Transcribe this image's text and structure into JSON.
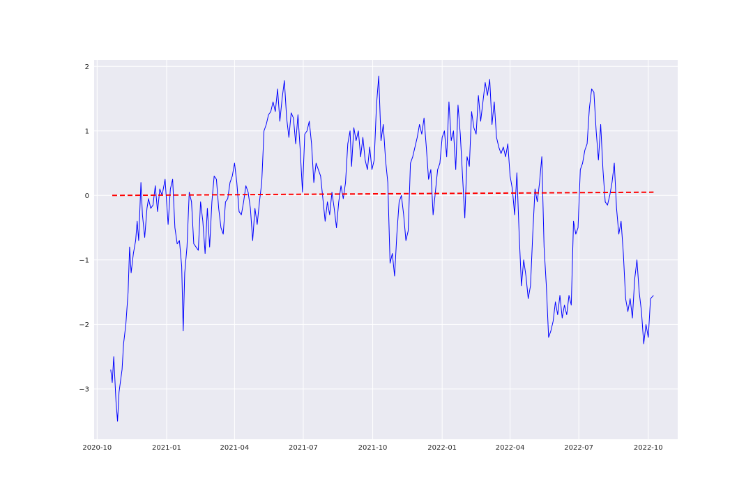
{
  "chart_data": {
    "type": "line",
    "title": "",
    "xlabel": "",
    "ylabel": "",
    "grid": true,
    "colors": {
      "background": "#eaeaf2",
      "grid": "#ffffff",
      "series": "#0000ff",
      "trend": "#ff0000",
      "text": "#262626"
    },
    "xlim": [
      "2020-09-27",
      "2022-11-09"
    ],
    "ylim": [
      -3.78,
      2.1
    ],
    "x_ticks": [
      {
        "date": "2020-10-01",
        "label": "2020-10"
      },
      {
        "date": "2021-01-01",
        "label": "2021-01"
      },
      {
        "date": "2021-04-01",
        "label": "2021-04"
      },
      {
        "date": "2021-07-01",
        "label": "2021-07"
      },
      {
        "date": "2021-10-01",
        "label": "2021-10"
      },
      {
        "date": "2022-01-01",
        "label": "2022-01"
      },
      {
        "date": "2022-04-01",
        "label": "2022-04"
      },
      {
        "date": "2022-07-01",
        "label": "2022-07"
      },
      {
        "date": "2022-10-01",
        "label": "2022-10"
      }
    ],
    "y_ticks": [
      {
        "value": -3,
        "label": "−3"
      },
      {
        "value": -2,
        "label": "−2"
      },
      {
        "value": -1,
        "label": "−1"
      },
      {
        "value": 0,
        "label": "0"
      },
      {
        "value": 1,
        "label": "1"
      },
      {
        "value": 2,
        "label": "2"
      }
    ],
    "series": [
      {
        "style": "solid",
        "points": [
          [
            "2020-10-19",
            -2.7
          ],
          [
            "2020-10-21",
            -2.9
          ],
          [
            "2020-10-23",
            -2.5
          ],
          [
            "2020-10-26",
            -3.2
          ],
          [
            "2020-10-28",
            -3.5
          ],
          [
            "2020-10-30",
            -3.05
          ],
          [
            "2020-11-03",
            -2.7
          ],
          [
            "2020-11-05",
            -2.3
          ],
          [
            "2020-11-08",
            -2.0
          ],
          [
            "2020-11-11",
            -1.5
          ],
          [
            "2020-11-13",
            -0.8
          ],
          [
            "2020-11-15",
            -1.2
          ],
          [
            "2020-11-18",
            -0.9
          ],
          [
            "2020-11-21",
            -0.7
          ],
          [
            "2020-11-23",
            -0.4
          ],
          [
            "2020-11-25",
            -0.7
          ],
          [
            "2020-11-28",
            0.2
          ],
          [
            "2020-11-30",
            -0.3
          ],
          [
            "2020-12-03",
            -0.65
          ],
          [
            "2020-12-06",
            -0.2
          ],
          [
            "2020-12-08",
            -0.05
          ],
          [
            "2020-12-11",
            -0.2
          ],
          [
            "2020-12-14",
            -0.15
          ],
          [
            "2020-12-17",
            0.15
          ],
          [
            "2020-12-20",
            -0.25
          ],
          [
            "2020-12-23",
            0.1
          ],
          [
            "2020-12-26",
            0.0
          ],
          [
            "2020-12-30",
            0.25
          ],
          [
            "2021-01-01",
            -0.1
          ],
          [
            "2021-01-03",
            -0.45
          ],
          [
            "2021-01-06",
            0.1
          ],
          [
            "2021-01-09",
            0.25
          ],
          [
            "2021-01-12",
            -0.5
          ],
          [
            "2021-01-15",
            -0.75
          ],
          [
            "2021-01-18",
            -0.7
          ],
          [
            "2021-01-21",
            -1.1
          ],
          [
            "2021-01-23",
            -2.1
          ],
          [
            "2021-01-25",
            -1.2
          ],
          [
            "2021-01-28",
            -0.8
          ],
          [
            "2021-01-31",
            0.05
          ],
          [
            "2021-02-03",
            -0.1
          ],
          [
            "2021-02-06",
            -0.75
          ],
          [
            "2021-02-09",
            -0.8
          ],
          [
            "2021-02-12",
            -0.85
          ],
          [
            "2021-02-15",
            -0.1
          ],
          [
            "2021-02-18",
            -0.4
          ],
          [
            "2021-02-21",
            -0.9
          ],
          [
            "2021-02-24",
            -0.2
          ],
          [
            "2021-02-27",
            -0.8
          ],
          [
            "2021-03-02",
            -0.1
          ],
          [
            "2021-03-05",
            0.3
          ],
          [
            "2021-03-08",
            0.25
          ],
          [
            "2021-03-11",
            -0.2
          ],
          [
            "2021-03-14",
            -0.5
          ],
          [
            "2021-03-17",
            -0.6
          ],
          [
            "2021-03-20",
            -0.1
          ],
          [
            "2021-03-23",
            -0.05
          ],
          [
            "2021-03-26",
            0.2
          ],
          [
            "2021-03-29",
            0.3
          ],
          [
            "2021-04-01",
            0.5
          ],
          [
            "2021-04-04",
            0.2
          ],
          [
            "2021-04-07",
            -0.25
          ],
          [
            "2021-04-10",
            -0.3
          ],
          [
            "2021-04-13",
            -0.1
          ],
          [
            "2021-04-16",
            0.15
          ],
          [
            "2021-04-19",
            0.05
          ],
          [
            "2021-04-22",
            -0.2
          ],
          [
            "2021-04-25",
            -0.7
          ],
          [
            "2021-04-28",
            -0.2
          ],
          [
            "2021-05-01",
            -0.45
          ],
          [
            "2021-05-04",
            -0.1
          ],
          [
            "2021-05-07",
            0.2
          ],
          [
            "2021-05-10",
            1.0
          ],
          [
            "2021-05-13",
            1.1
          ],
          [
            "2021-05-16",
            1.25
          ],
          [
            "2021-05-19",
            1.3
          ],
          [
            "2021-05-22",
            1.45
          ],
          [
            "2021-05-25",
            1.3
          ],
          [
            "2021-05-28",
            1.65
          ],
          [
            "2021-05-31",
            1.15
          ],
          [
            "2021-06-03",
            1.5
          ],
          [
            "2021-06-06",
            1.78
          ],
          [
            "2021-06-09",
            1.2
          ],
          [
            "2021-06-12",
            0.9
          ],
          [
            "2021-06-15",
            1.28
          ],
          [
            "2021-06-18",
            1.2
          ],
          [
            "2021-06-21",
            0.8
          ],
          [
            "2021-06-24",
            1.25
          ],
          [
            "2021-06-27",
            0.7
          ],
          [
            "2021-06-30",
            0.05
          ],
          [
            "2021-07-03",
            0.95
          ],
          [
            "2021-07-06",
            1.0
          ],
          [
            "2021-07-09",
            1.15
          ],
          [
            "2021-07-12",
            0.8
          ],
          [
            "2021-07-15",
            0.2
          ],
          [
            "2021-07-18",
            0.5
          ],
          [
            "2021-07-21",
            0.4
          ],
          [
            "2021-07-24",
            0.3
          ],
          [
            "2021-07-27",
            -0.05
          ],
          [
            "2021-07-30",
            -0.4
          ],
          [
            "2021-08-02",
            -0.1
          ],
          [
            "2021-08-05",
            -0.3
          ],
          [
            "2021-08-08",
            0.05
          ],
          [
            "2021-08-11",
            -0.2
          ],
          [
            "2021-08-14",
            -0.5
          ],
          [
            "2021-08-17",
            -0.1
          ],
          [
            "2021-08-20",
            0.15
          ],
          [
            "2021-08-23",
            -0.05
          ],
          [
            "2021-08-26",
            0.2
          ],
          [
            "2021-08-29",
            0.8
          ],
          [
            "2021-09-01",
            1.0
          ],
          [
            "2021-09-03",
            0.45
          ],
          [
            "2021-09-06",
            1.05
          ],
          [
            "2021-09-09",
            0.85
          ],
          [
            "2021-09-12",
            1.0
          ],
          [
            "2021-09-15",
            0.6
          ],
          [
            "2021-09-18",
            0.9
          ],
          [
            "2021-09-21",
            0.55
          ],
          [
            "2021-09-24",
            0.4
          ],
          [
            "2021-09-27",
            0.75
          ],
          [
            "2021-09-30",
            0.4
          ],
          [
            "2021-10-03",
            0.55
          ],
          [
            "2021-10-06",
            1.4
          ],
          [
            "2021-10-09",
            1.85
          ],
          [
            "2021-10-12",
            0.85
          ],
          [
            "2021-10-15",
            1.1
          ],
          [
            "2021-10-18",
            0.55
          ],
          [
            "2021-10-21",
            0.2
          ],
          [
            "2021-10-24",
            -1.05
          ],
          [
            "2021-10-27",
            -0.9
          ],
          [
            "2021-10-30",
            -1.25
          ],
          [
            "2021-11-02",
            -0.6
          ],
          [
            "2021-11-05",
            -0.1
          ],
          [
            "2021-11-08",
            0.0
          ],
          [
            "2021-11-11",
            -0.3
          ],
          [
            "2021-11-14",
            -0.7
          ],
          [
            "2021-11-17",
            -0.55
          ],
          [
            "2021-11-20",
            0.5
          ],
          [
            "2021-11-23",
            0.6
          ],
          [
            "2021-11-26",
            0.75
          ],
          [
            "2021-11-29",
            0.9
          ],
          [
            "2021-12-02",
            1.1
          ],
          [
            "2021-12-05",
            0.95
          ],
          [
            "2021-12-08",
            1.2
          ],
          [
            "2021-12-11",
            0.75
          ],
          [
            "2021-12-14",
            0.25
          ],
          [
            "2021-12-17",
            0.4
          ],
          [
            "2021-12-20",
            -0.3
          ],
          [
            "2021-12-23",
            0.05
          ],
          [
            "2021-12-26",
            0.4
          ],
          [
            "2021-12-29",
            0.5
          ],
          [
            "2022-01-01",
            0.9
          ],
          [
            "2022-01-04",
            1.0
          ],
          [
            "2022-01-07",
            0.6
          ],
          [
            "2022-01-10",
            1.45
          ],
          [
            "2022-01-13",
            0.85
          ],
          [
            "2022-01-16",
            1.0
          ],
          [
            "2022-01-19",
            0.4
          ],
          [
            "2022-01-22",
            1.4
          ],
          [
            "2022-01-25",
            0.95
          ],
          [
            "2022-01-28",
            0.3
          ],
          [
            "2022-01-31",
            -0.35
          ],
          [
            "2022-02-03",
            0.6
          ],
          [
            "2022-02-06",
            0.45
          ],
          [
            "2022-02-09",
            1.3
          ],
          [
            "2022-02-12",
            1.05
          ],
          [
            "2022-02-15",
            0.95
          ],
          [
            "2022-02-18",
            1.55
          ],
          [
            "2022-02-21",
            1.15
          ],
          [
            "2022-02-24",
            1.45
          ],
          [
            "2022-02-27",
            1.75
          ],
          [
            "2022-03-02",
            1.55
          ],
          [
            "2022-03-05",
            1.8
          ],
          [
            "2022-03-08",
            1.1
          ],
          [
            "2022-03-11",
            1.45
          ],
          [
            "2022-03-14",
            0.9
          ],
          [
            "2022-03-17",
            0.75
          ],
          [
            "2022-03-20",
            0.65
          ],
          [
            "2022-03-23",
            0.75
          ],
          [
            "2022-03-26",
            0.6
          ],
          [
            "2022-03-29",
            0.8
          ],
          [
            "2022-04-01",
            0.3
          ],
          [
            "2022-04-04",
            0.1
          ],
          [
            "2022-04-07",
            -0.3
          ],
          [
            "2022-04-10",
            0.35
          ],
          [
            "2022-04-13",
            -0.6
          ],
          [
            "2022-04-16",
            -1.4
          ],
          [
            "2022-04-19",
            -1.0
          ],
          [
            "2022-04-22",
            -1.25
          ],
          [
            "2022-04-25",
            -1.6
          ],
          [
            "2022-04-28",
            -1.4
          ],
          [
            "2022-05-01",
            -0.6
          ],
          [
            "2022-05-04",
            0.1
          ],
          [
            "2022-05-07",
            -0.1
          ],
          [
            "2022-05-10",
            0.2
          ],
          [
            "2022-05-13",
            0.6
          ],
          [
            "2022-05-16",
            -0.8
          ],
          [
            "2022-05-19",
            -1.4
          ],
          [
            "2022-05-22",
            -2.2
          ],
          [
            "2022-05-25",
            -2.1
          ],
          [
            "2022-05-28",
            -1.95
          ],
          [
            "2022-05-31",
            -1.65
          ],
          [
            "2022-06-03",
            -1.85
          ],
          [
            "2022-06-06",
            -1.55
          ],
          [
            "2022-06-09",
            -1.9
          ],
          [
            "2022-06-12",
            -1.7
          ],
          [
            "2022-06-15",
            -1.85
          ],
          [
            "2022-06-18",
            -1.55
          ],
          [
            "2022-06-21",
            -1.7
          ],
          [
            "2022-06-24",
            -0.4
          ],
          [
            "2022-06-27",
            -0.6
          ],
          [
            "2022-06-30",
            -0.5
          ],
          [
            "2022-07-03",
            0.4
          ],
          [
            "2022-07-06",
            0.5
          ],
          [
            "2022-07-09",
            0.7
          ],
          [
            "2022-07-12",
            0.8
          ],
          [
            "2022-07-15",
            1.35
          ],
          [
            "2022-07-18",
            1.65
          ],
          [
            "2022-07-21",
            1.6
          ],
          [
            "2022-07-24",
            1.0
          ],
          [
            "2022-07-27",
            0.55
          ],
          [
            "2022-07-30",
            1.1
          ],
          [
            "2022-08-02",
            0.4
          ],
          [
            "2022-08-05",
            -0.1
          ],
          [
            "2022-08-08",
            -0.15
          ],
          [
            "2022-08-11",
            0.0
          ],
          [
            "2022-08-14",
            0.2
          ],
          [
            "2022-08-17",
            0.5
          ],
          [
            "2022-08-20",
            -0.2
          ],
          [
            "2022-08-23",
            -0.6
          ],
          [
            "2022-08-26",
            -0.4
          ],
          [
            "2022-08-29",
            -0.9
          ],
          [
            "2022-09-01",
            -1.6
          ],
          [
            "2022-09-04",
            -1.8
          ],
          [
            "2022-09-07",
            -1.6
          ],
          [
            "2022-09-10",
            -1.9
          ],
          [
            "2022-09-13",
            -1.3
          ],
          [
            "2022-09-16",
            -1.0
          ],
          [
            "2022-09-19",
            -1.5
          ],
          [
            "2022-09-22",
            -1.8
          ],
          [
            "2022-09-25",
            -2.3
          ],
          [
            "2022-09-28",
            -2.0
          ],
          [
            "2022-10-01",
            -2.2
          ],
          [
            "2022-10-04",
            -1.6
          ],
          [
            "2022-10-08",
            -1.55
          ]
        ]
      },
      {
        "style": "dashed",
        "points": [
          [
            "2020-10-21",
            0.0
          ],
          [
            "2022-10-08",
            0.05
          ]
        ]
      }
    ]
  }
}
